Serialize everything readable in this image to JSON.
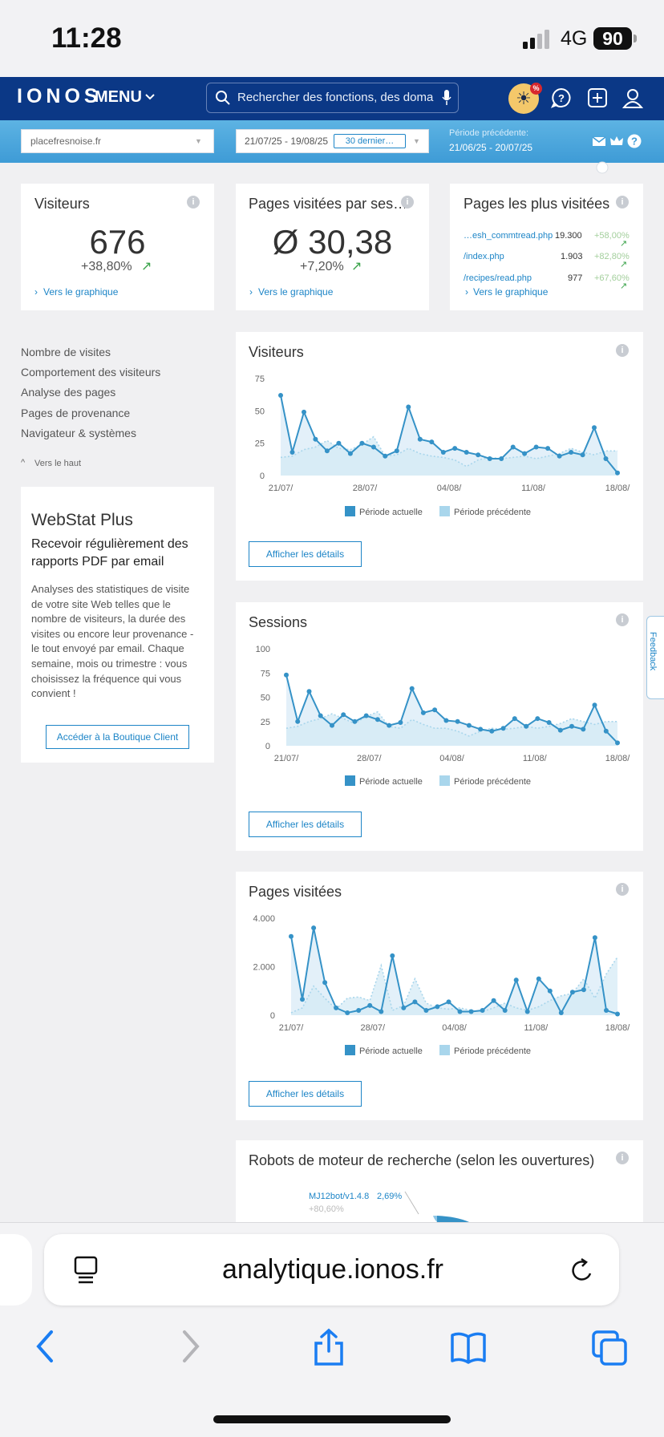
{
  "status_bar": {
    "time": "11:28",
    "network": "4G",
    "battery": "90"
  },
  "nav": {
    "logo": "IONOS",
    "menu_label": "MENU",
    "search_placeholder": "Rechercher des fonctions, des domai…",
    "sun_badge": "%"
  },
  "filters": {
    "domain": "placefresnoise.fr",
    "date_range": "21/07/25 - 19/08/25",
    "range_preset": "30 dernier…",
    "previous_label": "Période précédente:",
    "previous_value": "21/06/25 - 20/07/25"
  },
  "kpis": {
    "visitors": {
      "title": "Visiteurs",
      "value": "676",
      "delta": "+38,80%",
      "link": "Vers le graphique"
    },
    "pages_per_session": {
      "title": "Pages visitées par ses…",
      "value": "Ø 30,38",
      "delta": "+7,20%",
      "link": "Vers le graphique"
    },
    "top_pages": {
      "title": "Pages les plus visitées",
      "items": [
        {
          "page": "…esh_commtread.php",
          "count": "19.300",
          "pct": "+58,00%"
        },
        {
          "page": "/index.php",
          "count": "1.903",
          "pct": "+82,80%"
        },
        {
          "page": "/recipes/read.php",
          "count": "977",
          "pct": "+67,60%"
        }
      ],
      "link": "Vers le graphique"
    }
  },
  "sidebar": {
    "links": [
      "Nombre de visites",
      "Comportement des visiteurs",
      "Analyse des pages",
      "Pages de provenance",
      "Navigateur & systèmes"
    ],
    "back_to_top": "Vers le haut"
  },
  "promo": {
    "title": "WebStat Plus",
    "subtitle": "Recevoir régulièrement des rapports PDF par email",
    "body": "Analyses des statistiques de visite de votre site Web telles que le nombre de visiteurs, la durée des visites ou encore leur provenance - le tout envoyé par email. Chaque semaine, mois ou trimestre : vous choisissez la fréquence qui vous convient !",
    "button": "Accéder à la Boutique Client"
  },
  "legend": {
    "current": "Période actuelle",
    "previous": "Période précédente"
  },
  "details_button": "Afficher les détails",
  "robots": {
    "title": "Robots de moteur de recherche (selon les ouvertures)",
    "bot": "MJ12bot/v1.4.8",
    "share": "2,69%",
    "delta": "+80,60%"
  },
  "feedback": "Feedback",
  "browser": {
    "url": "analytique.ionos.fr"
  },
  "colors": {
    "brand": "#0b3886",
    "accent": "#1d85c7",
    "current_series": "#3592c7",
    "previous_series": "#a9d6ec",
    "positive": "#3aa34a"
  },
  "chart_data": [
    {
      "type": "line",
      "title": "Visiteurs",
      "x_ticks": [
        "21/07/",
        "28/07/",
        "04/08/",
        "11/08/",
        "18/08/"
      ],
      "ylim": [
        0,
        75
      ],
      "y_ticks": [
        "0",
        "25",
        "50",
        "75"
      ],
      "series": [
        {
          "name": "Période actuelle",
          "values": [
            62,
            18,
            49,
            28,
            19,
            25,
            17,
            25,
            22,
            15,
            19,
            53,
            28,
            26,
            18,
            21,
            18,
            16,
            13,
            13,
            22,
            17,
            22,
            21,
            15,
            18,
            16,
            37,
            13,
            2
          ]
        },
        {
          "name": "Période précédente",
          "values": [
            14,
            15,
            20,
            22,
            27,
            21,
            20,
            24,
            30,
            15,
            16,
            21,
            17,
            15,
            14,
            12,
            7,
            12,
            14,
            13,
            14,
            15,
            13,
            15,
            17,
            21,
            18,
            16,
            19,
            19
          ]
        }
      ]
    },
    {
      "type": "line",
      "title": "Sessions",
      "x_ticks": [
        "21/07/",
        "28/07/",
        "04/08/",
        "11/08/",
        "18/08/"
      ],
      "ylim": [
        0,
        100
      ],
      "y_ticks": [
        "0",
        "25",
        "50",
        "75",
        "100"
      ],
      "series": [
        {
          "name": "Période actuelle",
          "values": [
            73,
            25,
            56,
            31,
            21,
            32,
            25,
            31,
            27,
            21,
            24,
            59,
            34,
            37,
            26,
            25,
            21,
            17,
            15,
            18,
            28,
            20,
            28,
            24,
            16,
            20,
            17,
            42,
            15,
            3
          ]
        },
        {
          "name": "Période précédente",
          "values": [
            18,
            20,
            25,
            28,
            33,
            28,
            23,
            30,
            35,
            20,
            18,
            27,
            22,
            18,
            18,
            15,
            10,
            15,
            18,
            17,
            18,
            20,
            18,
            20,
            23,
            28,
            25,
            22,
            25,
            25
          ]
        }
      ]
    },
    {
      "type": "line",
      "title": "Pages visitées",
      "x_ticks": [
        "21/07/",
        "28/07/",
        "04/08/",
        "11/08/",
        "18/08/"
      ],
      "ylim": [
        0,
        4000
      ],
      "y_ticks": [
        "0",
        "2.000",
        "4.000"
      ],
      "series": [
        {
          "name": "Période actuelle",
          "values": [
            3250,
            650,
            3600,
            1350,
            300,
            100,
            200,
            400,
            150,
            2450,
            300,
            550,
            200,
            350,
            550,
            150,
            150,
            200,
            600,
            200,
            1450,
            150,
            1500,
            1000,
            100,
            950,
            1050,
            3200,
            200,
            50
          ]
        },
        {
          "name": "Période précédente",
          "values": [
            100,
            300,
            1200,
            700,
            250,
            700,
            750,
            600,
            2050,
            200,
            400,
            1500,
            500,
            300,
            250,
            300,
            200,
            150,
            300,
            500,
            300,
            200,
            350,
            600,
            800,
            900,
            1500,
            700,
            1700,
            2400
          ]
        }
      ]
    }
  ]
}
